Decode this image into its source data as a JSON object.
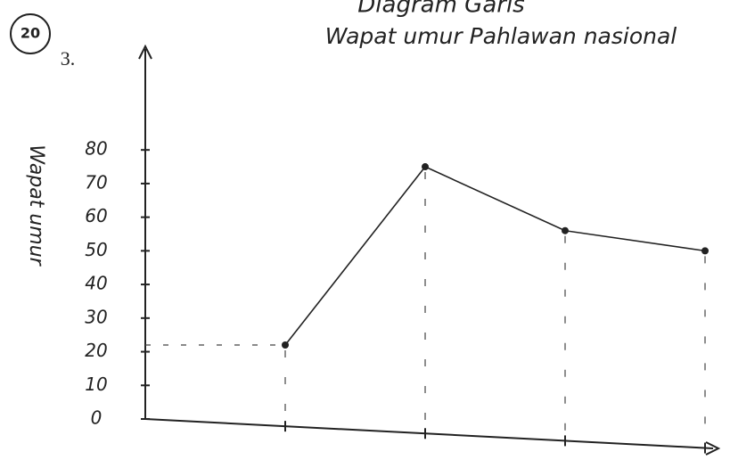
{
  "chart_data": {
    "type": "line",
    "title": "Diagram Garis",
    "subtitle": "Wapat umur Pahlawan nasional",
    "annotations": [
      "20",
      "3."
    ],
    "ylabel": "Wapat umur",
    "categories": [
      null,
      null,
      null,
      null
    ],
    "series": [
      {
        "name": null,
        "color": "#222222",
        "values": [
          22,
          75,
          56,
          50
        ]
      }
    ],
    "ylim": [
      0,
      110
    ],
    "yticks": [
      0,
      10,
      20,
      30,
      40,
      50,
      60,
      70,
      80
    ]
  }
}
